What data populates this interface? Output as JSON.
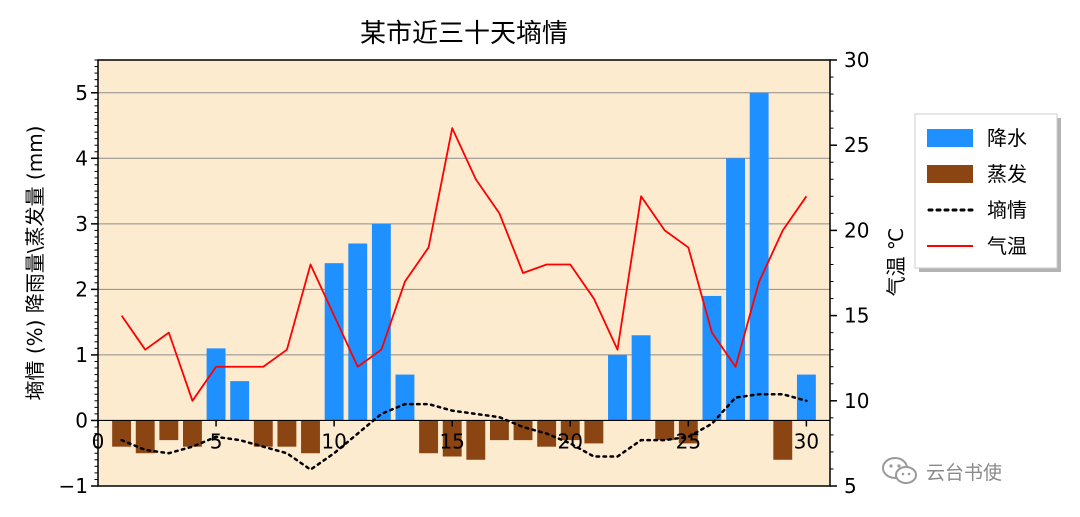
{
  "chart_data": {
    "type": "bar",
    "title": "某市近三十天墒情",
    "ylabel_left": "墒情 (%) 降雨量\\蒸发量 (mm)",
    "ylabel_right": "气温 ℃",
    "x": [
      1,
      2,
      3,
      4,
      5,
      6,
      7,
      8,
      9,
      10,
      11,
      12,
      13,
      14,
      15,
      16,
      17,
      18,
      19,
      20,
      21,
      22,
      23,
      24,
      25,
      26,
      27,
      28,
      29,
      30
    ],
    "xlim": [
      0,
      31
    ],
    "xticks": [
      0,
      5,
      10,
      15,
      20,
      25,
      30
    ],
    "ylim_left": [
      -1,
      5.5
    ],
    "yticks_left": [
      -1,
      0,
      1,
      2,
      3,
      4,
      5
    ],
    "ylim_right": [
      5,
      30
    ],
    "yticks_right": [
      5,
      10,
      15,
      20,
      25,
      30
    ],
    "grid": "horizontal",
    "legend_position": "right",
    "series": [
      {
        "name": "降水",
        "kind": "bar",
        "axis": "left",
        "color": "#1e90ff",
        "values": [
          0,
          0,
          0,
          0,
          1.1,
          0.6,
          0,
          0,
          0,
          2.4,
          2.7,
          3.0,
          0.7,
          0,
          0,
          0,
          0,
          0,
          0,
          0,
          0,
          1.0,
          1.3,
          0,
          0,
          1.9,
          4.0,
          5.0,
          0,
          0.7
        ]
      },
      {
        "name": "蒸发",
        "kind": "bar",
        "axis": "left",
        "color": "#8b4513",
        "values": [
          -0.4,
          -0.5,
          -0.3,
          -0.4,
          0,
          0,
          -0.4,
          -0.4,
          -0.5,
          0,
          0,
          0,
          0,
          -0.5,
          -0.55,
          -0.6,
          -0.3,
          -0.3,
          -0.4,
          -0.3,
          -0.35,
          0,
          0,
          -0.3,
          -0.35,
          0,
          0,
          0,
          -0.6,
          0
        ]
      },
      {
        "name": "墒情",
        "kind": "dotted-line",
        "axis": "left",
        "color": "#000000",
        "values": [
          -0.3,
          -0.45,
          -0.5,
          -0.4,
          -0.25,
          -0.3,
          -0.4,
          -0.5,
          -0.75,
          -0.5,
          -0.2,
          0.1,
          0.25,
          0.25,
          0.15,
          0.1,
          0.05,
          -0.1,
          -0.2,
          -0.35,
          -0.55,
          -0.55,
          -0.3,
          -0.3,
          -0.25,
          -0.05,
          0.35,
          0.4,
          0.4,
          0.3
        ]
      },
      {
        "name": "气温",
        "kind": "line",
        "axis": "right",
        "color": "#ff0000",
        "values": [
          15,
          13,
          14,
          10,
          12,
          12,
          12,
          13,
          18,
          15,
          12,
          13,
          17,
          19,
          26,
          23,
          21,
          17.5,
          18,
          18,
          16,
          13,
          22,
          20,
          19,
          14,
          12,
          17,
          20,
          22
        ]
      }
    ]
  },
  "watermark": {
    "text": "云台书使",
    "icon": "wechat-icon",
    "color": "#8a8a8a"
  }
}
